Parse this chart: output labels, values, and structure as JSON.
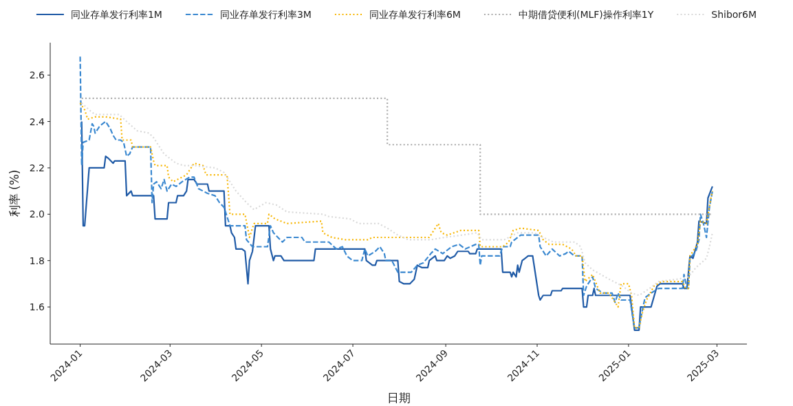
{
  "chart_data": {
    "type": "line",
    "xlabel": "日期",
    "ylabel": "利率 (%)",
    "legend": "top",
    "grid": false,
    "xlim": [
      "2023-12-12",
      "2025-03-21"
    ],
    "xticks": [
      "2024-01",
      "2024-03",
      "2024-05",
      "2024-07",
      "2024-09",
      "2024-11",
      "2025-01",
      "2025-03"
    ],
    "ylim": [
      1.44,
      2.74
    ],
    "yticks": [
      1.6,
      1.8,
      {
        "value": 2.0,
        "label": "2.0"
      },
      2.2,
      2.4,
      2.6
    ],
    "series": [
      {
        "name": "同业存单发行利率1M",
        "color": "#1f5aa6",
        "line_style": "solid",
        "x": [
          "2024-01-02",
          "2024-01-03",
          "2024-01-04",
          "2024-01-07",
          "2024-01-17",
          "2024-01-18",
          "2024-01-20",
          "2024-01-23",
          "2024-01-24",
          "2024-01-31",
          "2024-02-01",
          "2024-02-04",
          "2024-02-05",
          "2024-02-19",
          "2024-02-20",
          "2024-02-28",
          "2024-02-29",
          "2024-03-05",
          "2024-03-06",
          "2024-03-10",
          "2024-03-12",
          "2024-03-13",
          "2024-03-17",
          "2024-03-19",
          "2024-03-26",
          "2024-03-27",
          "2024-04-06",
          "2024-04-07",
          "2024-04-10",
          "2024-04-11",
          "2024-04-13",
          "2024-04-14",
          "2024-04-18",
          "2024-04-20",
          "2024-04-22",
          "2024-04-23",
          "2024-04-25",
          "2024-04-27",
          "2024-05-06",
          "2024-05-07",
          "2024-05-09",
          "2024-05-10",
          "2024-05-14",
          "2024-05-16",
          "2024-06-05",
          "2024-06-06",
          "2024-07-09",
          "2024-07-10",
          "2024-07-14",
          "2024-07-16",
          "2024-07-17",
          "2024-07-31",
          "2024-08-01",
          "2024-08-04",
          "2024-08-08",
          "2024-08-11",
          "2024-08-13",
          "2024-08-16",
          "2024-08-20",
          "2024-08-21",
          "2024-08-25",
          "2024-08-26",
          "2024-08-31",
          "2024-09-02",
          "2024-09-04",
          "2024-09-07",
          "2024-09-09",
          "2024-09-16",
          "2024-09-17",
          "2024-09-21",
          "2024-09-22",
          "2024-10-08",
          "2024-10-09",
          "2024-10-14",
          "2024-10-15",
          "2024-10-16",
          "2024-10-18",
          "2024-10-19",
          "2024-10-20",
          "2024-10-22",
          "2024-10-26",
          "2024-10-29",
          "2024-11-02",
          "2024-11-03",
          "2024-11-05",
          "2024-11-10",
          "2024-11-11",
          "2024-11-17",
          "2024-11-18",
          "2024-12-01",
          "2024-12-02",
          "2024-12-04",
          "2024-12-05",
          "2024-12-08",
          "2024-12-09",
          "2024-12-10",
          "2025-01-02",
          "2025-01-05",
          "2025-01-08",
          "2025-01-09",
          "2025-01-16",
          "2025-01-20",
          "2025-01-22",
          "2025-02-06",
          "2025-02-07",
          "2025-02-09",
          "2025-02-11",
          "2025-02-13",
          "2025-02-16",
          "2025-02-17",
          "2025-02-22",
          "2025-02-23",
          "2025-02-26"
        ],
        "values": [
          2.4,
          1.95,
          1.95,
          2.2,
          2.2,
          2.25,
          2.24,
          2.22,
          2.23,
          2.23,
          2.08,
          2.1,
          2.08,
          2.08,
          1.98,
          1.98,
          2.05,
          2.05,
          2.08,
          2.08,
          2.1,
          2.15,
          2.15,
          2.13,
          2.13,
          2.1,
          2.1,
          1.95,
          1.95,
          1.92,
          1.9,
          1.85,
          1.85,
          1.84,
          1.7,
          1.8,
          1.84,
          1.95,
          1.95,
          1.85,
          1.8,
          1.82,
          1.82,
          1.8,
          1.8,
          1.85,
          1.85,
          1.8,
          1.78,
          1.78,
          1.8,
          1.8,
          1.71,
          1.7,
          1.7,
          1.72,
          1.78,
          1.77,
          1.77,
          1.8,
          1.82,
          1.8,
          1.8,
          1.82,
          1.81,
          1.82,
          1.84,
          1.84,
          1.83,
          1.83,
          1.85,
          1.85,
          1.75,
          1.75,
          1.73,
          1.75,
          1.73,
          1.78,
          1.75,
          1.8,
          1.82,
          1.82,
          1.65,
          1.63,
          1.65,
          1.65,
          1.67,
          1.67,
          1.68,
          1.68,
          1.6,
          1.6,
          1.65,
          1.65,
          1.68,
          1.65,
          1.65,
          1.5,
          1.5,
          1.6,
          1.6,
          1.69,
          1.7,
          1.7,
          1.68,
          1.68,
          1.82,
          1.81,
          1.88,
          1.97,
          1.96,
          2.07,
          2.12
        ]
      },
      {
        "name": "同业存单发行利率3M",
        "color": "#3a88d0",
        "line_style": "dashed",
        "x": [
          "2024-01-01",
          "2024-01-02",
          "2024-01-03",
          "2024-01-07",
          "2024-01-09",
          "2024-01-10",
          "2024-01-11",
          "2024-01-14",
          "2024-01-18",
          "2024-01-21",
          "2024-01-23",
          "2024-01-25",
          "2024-01-28",
          "2024-01-30",
          "2024-02-01",
          "2024-02-03",
          "2024-02-05",
          "2024-02-17",
          "2024-02-18",
          "2024-02-19",
          "2024-02-21",
          "2024-02-24",
          "2024-02-26",
          "2024-02-28",
          "2024-03-02",
          "2024-03-05",
          "2024-03-09",
          "2024-03-14",
          "2024-03-17",
          "2024-03-20",
          "2024-03-26",
          "2024-03-31",
          "2024-04-03",
          "2024-04-06",
          "2024-04-10",
          "2024-04-20",
          "2024-04-21",
          "2024-04-25",
          "2024-05-05",
          "2024-05-07",
          "2024-05-09",
          "2024-05-15",
          "2024-05-18",
          "2024-05-28",
          "2024-05-30",
          "2024-06-15",
          "2024-06-20",
          "2024-06-24",
          "2024-06-27",
          "2024-07-01",
          "2024-07-07",
          "2024-07-09",
          "2024-07-11",
          "2024-07-16",
          "2024-07-19",
          "2024-07-22",
          "2024-07-23",
          "2024-07-27",
          "2024-07-31",
          "2024-08-09",
          "2024-08-13",
          "2024-08-17",
          "2024-08-22",
          "2024-08-25",
          "2024-08-30",
          "2024-09-05",
          "2024-09-10",
          "2024-09-14",
          "2024-09-21",
          "2024-09-23",
          "2024-09-24",
          "2024-09-25",
          "2024-10-07",
          "2024-10-09",
          "2024-10-14",
          "2024-10-15",
          "2024-10-21",
          "2024-11-02",
          "2024-11-03",
          "2024-11-07",
          "2024-11-11",
          "2024-11-16",
          "2024-11-20",
          "2024-11-22",
          "2024-11-26",
          "2024-12-01",
          "2024-12-02",
          "2024-12-04",
          "2024-12-08",
          "2024-12-10",
          "2024-12-15",
          "2024-12-21",
          "2024-12-23",
          "2024-12-25",
          "2024-12-27",
          "2025-01-02",
          "2025-01-05",
          "2025-01-08",
          "2025-01-10",
          "2025-01-12",
          "2025-01-16",
          "2025-01-21",
          "2025-02-06",
          "2025-02-07",
          "2025-02-09",
          "2025-02-10",
          "2025-02-11",
          "2025-02-15",
          "2025-02-17",
          "2025-02-18",
          "2025-02-20",
          "2025-02-22",
          "2025-02-24",
          "2025-02-26"
        ],
        "values": [
          2.68,
          2.21,
          2.31,
          2.32,
          2.39,
          2.38,
          2.35,
          2.38,
          2.4,
          2.37,
          2.34,
          2.32,
          2.32,
          2.31,
          2.25,
          2.26,
          2.29,
          2.29,
          2.05,
          2.13,
          2.14,
          2.11,
          2.15,
          2.1,
          2.13,
          2.12,
          2.14,
          2.16,
          2.16,
          2.11,
          2.09,
          2.08,
          2.05,
          2.03,
          1.95,
          1.95,
          1.89,
          1.86,
          1.86,
          1.95,
          1.92,
          1.88,
          1.9,
          1.9,
          1.88,
          1.88,
          1.85,
          1.86,
          1.82,
          1.8,
          1.8,
          1.85,
          1.82,
          1.84,
          1.86,
          1.83,
          1.8,
          1.8,
          1.75,
          1.75,
          1.78,
          1.79,
          1.83,
          1.85,
          1.83,
          1.86,
          1.87,
          1.85,
          1.87,
          1.87,
          1.78,
          1.82,
          1.82,
          1.86,
          1.86,
          1.88,
          1.91,
          1.91,
          1.86,
          1.82,
          1.85,
          1.82,
          1.83,
          1.84,
          1.82,
          1.82,
          1.65,
          1.69,
          1.73,
          1.68,
          1.66,
          1.66,
          1.62,
          1.66,
          1.63,
          1.63,
          1.51,
          1.51,
          1.58,
          1.64,
          1.66,
          1.68,
          1.68,
          1.74,
          1.68,
          1.68,
          1.81,
          1.84,
          1.89,
          2.0,
          1.96,
          1.9,
          2.03,
          2.1
        ]
      },
      {
        "name": "同业存单发行利率6M",
        "color": "#f7b500",
        "line_style": "dotted",
        "x": [
          "2024-01-01",
          "2024-01-04",
          "2024-01-06",
          "2024-01-11",
          "2024-01-18",
          "2024-01-28",
          "2024-01-29",
          "2024-02-04",
          "2024-02-05",
          "2024-02-17",
          "2024-02-19",
          "2024-02-20",
          "2024-02-28",
          "2024-02-29",
          "2024-03-03",
          "2024-03-06",
          "2024-03-12",
          "2024-03-17",
          "2024-03-23",
          "2024-03-25",
          "2024-04-08",
          "2024-04-10",
          "2024-04-20",
          "2024-04-23",
          "2024-04-26",
          "2024-05-05",
          "2024-05-06",
          "2024-05-10",
          "2024-05-18",
          "2024-06-10",
          "2024-06-11",
          "2024-06-17",
          "2024-06-26",
          "2024-07-11",
          "2024-07-14",
          "2024-08-21",
          "2024-08-23",
          "2024-08-27",
          "2024-08-29",
          "2024-09-02",
          "2024-09-11",
          "2024-09-23",
          "2024-09-24",
          "2024-10-09",
          "2024-10-13",
          "2024-10-16",
          "2024-10-21",
          "2024-11-02",
          "2024-11-05",
          "2024-11-09",
          "2024-11-18",
          "2024-11-24",
          "2024-11-27",
          "2024-12-01",
          "2024-12-03",
          "2024-12-08",
          "2024-12-13",
          "2024-12-19",
          "2024-12-25",
          "2024-12-27",
          "2025-01-01",
          "2025-01-03",
          "2025-01-05",
          "2025-01-08",
          "2025-01-10",
          "2025-01-13",
          "2025-01-18",
          "2025-01-23",
          "2025-02-06",
          "2025-02-08",
          "2025-02-10",
          "2025-02-11",
          "2025-02-16",
          "2025-02-18",
          "2025-02-22",
          "2025-02-25",
          "2025-02-26"
        ],
        "values": [
          2.48,
          2.45,
          2.41,
          2.42,
          2.42,
          2.41,
          2.32,
          2.32,
          2.29,
          2.29,
          2.23,
          2.21,
          2.21,
          2.16,
          2.14,
          2.15,
          2.17,
          2.22,
          2.21,
          2.17,
          2.17,
          2.0,
          2.0,
          1.9,
          1.96,
          1.96,
          2.0,
          1.98,
          1.96,
          1.97,
          1.92,
          1.9,
          1.89,
          1.89,
          1.9,
          1.9,
          1.92,
          1.96,
          1.92,
          1.91,
          1.93,
          1.93,
          1.86,
          1.86,
          1.88,
          1.93,
          1.94,
          1.93,
          1.89,
          1.87,
          1.87,
          1.85,
          1.82,
          1.82,
          1.71,
          1.74,
          1.66,
          1.66,
          1.6,
          1.7,
          1.7,
          1.65,
          1.51,
          1.51,
          1.57,
          1.63,
          1.69,
          1.71,
          1.71,
          1.68,
          1.68,
          1.82,
          1.87,
          1.97,
          1.96,
          2.07,
          2.1
        ]
      },
      {
        "name": "中期借贷便利(MLF)操作利率1Y",
        "color": "#aaaaaa",
        "line_style": "dotted",
        "type": "step",
        "x": [
          "2024-01-02",
          "2024-07-24",
          "2024-09-24",
          "2025-02-26"
        ],
        "values": [
          2.5,
          2.3,
          2.0,
          2.0
        ]
      },
      {
        "name": "Shibor6M",
        "color": "#d9d9d9",
        "line_style": "dotted",
        "x": [
          "2024-01-02",
          "2024-01-07",
          "2024-01-11",
          "2024-01-27",
          "2024-02-01",
          "2024-02-08",
          "2024-02-16",
          "2024-02-19",
          "2024-02-26",
          "2024-03-05",
          "2024-03-10",
          "2024-03-17",
          "2024-03-31",
          "2024-04-06",
          "2024-04-14",
          "2024-04-21",
          "2024-04-26",
          "2024-05-04",
          "2024-05-11",
          "2024-05-18",
          "2024-06-11",
          "2024-06-15",
          "2024-06-29",
          "2024-07-05",
          "2024-07-18",
          "2024-07-24",
          "2024-07-31",
          "2024-08-07",
          "2024-08-22",
          "2024-08-31",
          "2024-09-12",
          "2024-09-22",
          "2024-09-25",
          "2024-10-10",
          "2024-10-19",
          "2024-10-30",
          "2024-11-05",
          "2024-11-12",
          "2024-11-26",
          "2024-11-30",
          "2024-12-03",
          "2024-12-08",
          "2024-12-19",
          "2024-12-28",
          "2025-01-03",
          "2025-01-08",
          "2025-01-15",
          "2025-01-21",
          "2025-02-03",
          "2025-02-10",
          "2025-02-15",
          "2025-02-22",
          "2025-02-24",
          "2025-02-26"
        ],
        "values": [
          2.48,
          2.45,
          2.43,
          2.43,
          2.4,
          2.36,
          2.35,
          2.33,
          2.26,
          2.22,
          2.21,
          2.21,
          2.2,
          2.18,
          2.1,
          2.05,
          2.02,
          2.05,
          2.04,
          2.01,
          2.0,
          1.99,
          1.98,
          1.96,
          1.96,
          1.94,
          1.91,
          1.89,
          1.89,
          1.9,
          1.91,
          1.92,
          1.89,
          1.89,
          1.92,
          1.92,
          1.9,
          1.88,
          1.88,
          1.86,
          1.79,
          1.76,
          1.72,
          1.69,
          1.66,
          1.65,
          1.68,
          1.71,
          1.72,
          1.73,
          1.77,
          1.81,
          1.86,
          1.92
        ]
      }
    ]
  }
}
